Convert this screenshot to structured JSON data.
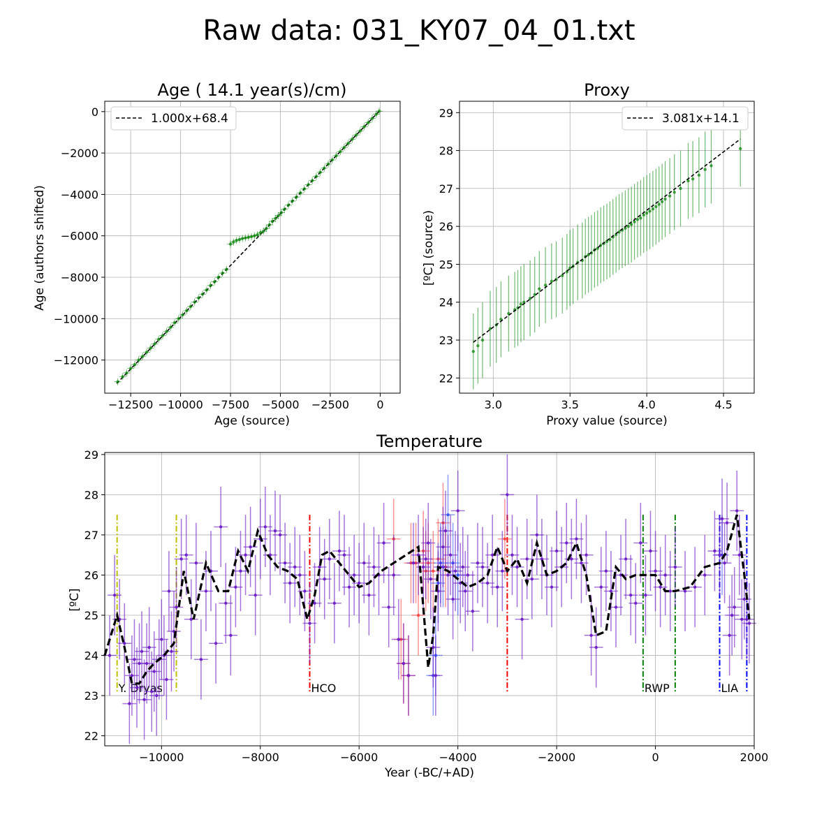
{
  "figure": {
    "title": "Raw data: 031_KY07_04_01.txt"
  },
  "chart_data": [
    {
      "id": "age",
      "type": "scatter",
      "title": "Age ( 14.1 year(s)/cm)",
      "xlabel": "Age (source)",
      "ylabel": "Age (authors shifted)",
      "xlim": [
        -13800,
        1000
      ],
      "ylim": [
        -13600,
        500
      ],
      "xticks": [
        -12500,
        -10000,
        -7500,
        -5000,
        -2500,
        0
      ],
      "xtick_labels": [
        "−12500",
        "−10000",
        "−7500",
        "−5000",
        "−2500",
        "0"
      ],
      "yticks": [
        -12000,
        -10000,
        -8000,
        -6000,
        -4000,
        -2000,
        0
      ],
      "ytick_labels": [
        "−12000",
        "−10000",
        "−8000",
        "−6000",
        "−4000",
        "−2000",
        "0"
      ],
      "grid": true,
      "legend": {
        "position": "upper-left",
        "entries": [
          "1.000x+68.4"
        ]
      },
      "fit": {
        "slope": 1.0,
        "intercept": 68.4,
        "x_range": [
          -13200,
          0
        ]
      },
      "colors": {
        "points": "#008000",
        "fit": "#000000"
      },
      "x": [
        -13150,
        -12900,
        -12700,
        -12500,
        -12300,
        -12100,
        -11900,
        -11700,
        -11500,
        -11300,
        -11100,
        -10900,
        -10700,
        -10500,
        -10300,
        -10100,
        -9900,
        -9700,
        -9500,
        -9300,
        -9100,
        -8900,
        -8700,
        -8500,
        -8300,
        -8100,
        -7900,
        -7700,
        -7500,
        -7350,
        -7200,
        -7050,
        -6900,
        -6750,
        -6600,
        -6450,
        -6300,
        -6150,
        -6000,
        -5850,
        -5700,
        -5550,
        -5400,
        -5250,
        -5100,
        -4950,
        -4800,
        -4600,
        -4400,
        -4200,
        -4000,
        -3800,
        -3600,
        -3400,
        -3200,
        -3000,
        -2800,
        -2600,
        -2400,
        -2200,
        -2000,
        -1800,
        -1600,
        -1400,
        -1200,
        -1000,
        -800,
        -600,
        -400,
        -200,
        -50
      ],
      "y": [
        -13050,
        -12800,
        -12620,
        -12400,
        -12220,
        -12000,
        -11820,
        -11620,
        -11420,
        -11220,
        -11000,
        -10820,
        -10620,
        -10420,
        -10200,
        -10000,
        -9820,
        -9620,
        -9420,
        -9200,
        -9000,
        -8820,
        -8620,
        -8400,
        -8220,
        -8000,
        -7800,
        -7620,
        -6400,
        -6300,
        -6220,
        -6180,
        -6130,
        -6100,
        -6070,
        -6040,
        -6000,
        -5950,
        -5850,
        -5780,
        -5640,
        -5470,
        -5300,
        -5160,
        -5020,
        -4880,
        -4720,
        -4520,
        -4320,
        -4130,
        -3930,
        -3730,
        -3530,
        -3330,
        -3130,
        -2930,
        -2730,
        -2530,
        -2330,
        -2130,
        -1930,
        -1730,
        -1530,
        -1330,
        -1130,
        -930,
        -730,
        -530,
        -330,
        -130,
        20
      ]
    },
    {
      "id": "proxy",
      "type": "scatter",
      "title": "Proxy",
      "xlabel": "Proxy value (source)",
      "ylabel": "[ºC] (source)",
      "xlim": [
        2.78,
        4.7
      ],
      "ylim": [
        21.6,
        29.3
      ],
      "xticks": [
        3.0,
        3.5,
        4.0,
        4.5
      ],
      "xtick_labels": [
        "3.0",
        "3.5",
        "4.0",
        "4.5"
      ],
      "yticks": [
        22,
        23,
        24,
        25,
        26,
        27,
        28,
        29
      ],
      "ytick_labels": [
        "22",
        "23",
        "24",
        "25",
        "26",
        "27",
        "28",
        "29"
      ],
      "grid": true,
      "legend": {
        "position": "upper-right",
        "entries": [
          "3.081x+14.1"
        ]
      },
      "fit": {
        "slope": 3.081,
        "intercept": 14.1,
        "x_range": [
          2.87,
          4.61
        ]
      },
      "error": 1.0,
      "colors": {
        "points": "#008000",
        "fit": "#000000"
      },
      "x": [
        2.87,
        2.9,
        2.93,
        2.98,
        3.02,
        3.05,
        3.1,
        3.14,
        3.16,
        3.18,
        3.2,
        3.24,
        3.27,
        3.3,
        3.34,
        3.38,
        3.41,
        3.45,
        3.48,
        3.5,
        3.52,
        3.55,
        3.58,
        3.6,
        3.62,
        3.64,
        3.66,
        3.68,
        3.7,
        3.72,
        3.74,
        3.76,
        3.78,
        3.8,
        3.82,
        3.84,
        3.86,
        3.88,
        3.9,
        3.92,
        3.94,
        3.96,
        3.98,
        4.0,
        4.02,
        4.04,
        4.06,
        4.08,
        4.1,
        4.12,
        4.15,
        4.18,
        4.22,
        4.27,
        4.3,
        4.34,
        4.38,
        4.42,
        4.61
      ],
      "y": [
        22.7,
        22.85,
        23.0,
        23.3,
        23.4,
        23.55,
        23.7,
        23.8,
        23.85,
        23.95,
        24.0,
        24.1,
        24.2,
        24.35,
        24.45,
        24.55,
        24.6,
        24.7,
        24.8,
        24.9,
        24.95,
        25.05,
        25.1,
        25.2,
        25.25,
        25.3,
        25.38,
        25.42,
        25.5,
        25.55,
        25.6,
        25.65,
        25.72,
        25.78,
        25.85,
        25.9,
        25.95,
        26.0,
        26.05,
        26.12,
        26.18,
        26.22,
        26.3,
        26.35,
        26.4,
        26.46,
        26.52,
        26.58,
        26.65,
        26.72,
        26.8,
        26.9,
        27.0,
        27.2,
        27.25,
        27.35,
        27.5,
        27.6,
        28.05
      ]
    },
    {
      "id": "temperature",
      "type": "line",
      "title": "Temperature",
      "xlabel": "Year (-BC/+AD)",
      "ylabel": "[ºC]",
      "xlim": [
        -11150,
        2000
      ],
      "ylim": [
        21.75,
        29.05
      ],
      "xticks": [
        -10000,
        -8000,
        -6000,
        -4000,
        -2000,
        0,
        2000
      ],
      "xtick_labels": [
        "−10000",
        "−8000",
        "−6000",
        "−4000",
        "−2000",
        "0",
        "2000"
      ],
      "yticks": [
        22,
        23,
        24,
        25,
        26,
        27,
        28,
        29
      ],
      "ytick_labels": [
        "22",
        "23",
        "24",
        "25",
        "26",
        "27",
        "28",
        "29"
      ],
      "grid": true,
      "colors": {
        "points": "#6a1bc4",
        "red": "#ff4040",
        "blue": "#3050ff",
        "smooth": "#000000"
      },
      "periods": [
        {
          "label": "Y. Dryas",
          "x0": -10900,
          "x1": -9700,
          "color": "#bfbf00"
        },
        {
          "label": "HCO",
          "x0": -7000,
          "x1": -3000,
          "color": "#ff0000"
        },
        {
          "label": "RWP",
          "x0": -250,
          "x1": 400,
          "color": "#008000"
        },
        {
          "label": "LIA",
          "x0": 1300,
          "x1": 1850,
          "color": "#0000ff"
        }
      ],
      "smooth": {
        "x": [
          -11150,
          -10900,
          -10750,
          -10600,
          -10450,
          -10300,
          -10150,
          -9950,
          -9750,
          -9550,
          -9350,
          -9100,
          -8850,
          -8650,
          -8450,
          -8250,
          -8050,
          -7850,
          -7650,
          -7450,
          -7250,
          -7050,
          -6900,
          -6750,
          -6600,
          -6400,
          -6200,
          -6000,
          -5800,
          -5550,
          -5300,
          -5050,
          -4800,
          -4600,
          -4500,
          -4400,
          -4200,
          -4000,
          -3800,
          -3600,
          -3400,
          -3200,
          -3000,
          -2800,
          -2600,
          -2400,
          -2200,
          -2000,
          -1800,
          -1600,
          -1400,
          -1200,
          -1000,
          -800,
          -600,
          -400,
          -200,
          0,
          200,
          400,
          700,
          1000,
          1300,
          1450,
          1650,
          1800,
          1900
        ],
        "y": [
          24.0,
          25.0,
          24.2,
          23.3,
          23.3,
          23.6,
          23.8,
          24.0,
          24.3,
          26.1,
          24.9,
          26.3,
          25.6,
          25.6,
          26.6,
          26.1,
          27.1,
          26.5,
          26.2,
          26.1,
          25.9,
          24.9,
          25.5,
          26.5,
          26.6,
          26.3,
          26.0,
          25.7,
          25.8,
          26.1,
          26.3,
          26.5,
          26.7,
          23.7,
          24.5,
          26.2,
          26.1,
          25.9,
          25.7,
          25.8,
          26.0,
          26.7,
          26.1,
          26.4,
          25.8,
          26.8,
          26.0,
          26.1,
          26.3,
          26.8,
          26.0,
          24.5,
          24.6,
          26.2,
          25.9,
          26.0,
          26.0,
          26.0,
          25.6,
          25.6,
          25.7,
          26.2,
          26.3,
          26.6,
          27.5,
          26.0,
          24.9
        ]
      },
      "points": {
        "x": [
          -11050,
          -10950,
          -10850,
          -10750,
          -10650,
          -10600,
          -10550,
          -10500,
          -10450,
          -10400,
          -10350,
          -10300,
          -10250,
          -10200,
          -10150,
          -10100,
          -10050,
          -10000,
          -9950,
          -9900,
          -9850,
          -9800,
          -9750,
          -9700,
          -9600,
          -9500,
          -9400,
          -9300,
          -9200,
          -9100,
          -9000,
          -8900,
          -8800,
          -8700,
          -8600,
          -8500,
          -8400,
          -8300,
          -8200,
          -8100,
          -8000,
          -7900,
          -7800,
          -7700,
          -7600,
          -7500,
          -7400,
          -7300,
          -7200,
          -7100,
          -7000,
          -6900,
          -6800,
          -6700,
          -6600,
          -6500,
          -6400,
          -6300,
          -6200,
          -6100,
          -6000,
          -5900,
          -5800,
          -5700,
          -5600,
          -5500,
          -5400,
          -5300,
          -5200,
          -5100,
          -5000,
          -4900,
          -4800,
          -4700,
          -4650,
          -4600,
          -4550,
          -4500,
          -4450,
          -4400,
          -4350,
          -4300,
          -4250,
          -4200,
          -4150,
          -4100,
          -4050,
          -4000,
          -3950,
          -3900,
          -3850,
          -3800,
          -3700,
          -3600,
          -3500,
          -3400,
          -3300,
          -3200,
          -3100,
          -3000,
          -2900,
          -2800,
          -2700,
          -2600,
          -2500,
          -2400,
          -2300,
          -2200,
          -2100,
          -2000,
          -1900,
          -1800,
          -1700,
          -1600,
          -1500,
          -1400,
          -1300,
          -1200,
          -1100,
          -1000,
          -900,
          -800,
          -700,
          -600,
          -500,
          -400,
          -300,
          -200,
          -100,
          0,
          100,
          200,
          300,
          400,
          600,
          800,
          1000,
          1200,
          1300,
          1350,
          1400,
          1450,
          1500,
          1550,
          1600,
          1650,
          1700,
          1750,
          1800,
          1850,
          1900
        ],
        "y": [
          24.0,
          25.5,
          24.9,
          24.3,
          22.8,
          23.5,
          23.9,
          23.2,
          23.8,
          24.1,
          22.9,
          23.8,
          24.2,
          23.1,
          23.6,
          23.0,
          23.9,
          24.4,
          24.0,
          23.4,
          25.6,
          24.1,
          24.6,
          25.2,
          26.4,
          26.5,
          24.9,
          26.3,
          23.9,
          25.6,
          26.1,
          24.3,
          27.2,
          25.3,
          24.5,
          25.7,
          26.1,
          26.5,
          26.7,
          25.5,
          26.9,
          27.2,
          26.5,
          27.1,
          27.0,
          26.3,
          25.8,
          26.2,
          26.0,
          25.6,
          24.8,
          25.3,
          26.2,
          25.9,
          26.4,
          25.3,
          26.6,
          26.5,
          25.7,
          26.0,
          25.8,
          26.3,
          25.5,
          26.2,
          26.0,
          26.8,
          25.2,
          26.0,
          24.4,
          23.8,
          23.5,
          26.3,
          26.5,
          26.2,
          26.4,
          26.8,
          25.9,
          24.2,
          23.5,
          25.6,
          26.2,
          26.7,
          27.1,
          26.0,
          26.5,
          25.4,
          26.1,
          27.6,
          25.8,
          26.2,
          25.6,
          26.0,
          25.1,
          26.3,
          26.2,
          25.8,
          26.5,
          25.7,
          26.1,
          28.0,
          26.5,
          26.2,
          24.9,
          26.4,
          25.9,
          27.0,
          26.4,
          26.0,
          25.7,
          26.6,
          26.2,
          26.8,
          26.4,
          26.9,
          26.3,
          26.5,
          24.5,
          24.2,
          25.7,
          26.1,
          25.6,
          25.2,
          26.0,
          26.4,
          25.5,
          25.3,
          26.8,
          25.5,
          26.6,
          26.1,
          25.7,
          26.0,
          25.6,
          26.2,
          25.6,
          25.7,
          26.0,
          26.6,
          26.5,
          27.4,
          26.3,
          27.3,
          24.5,
          25.0,
          25.2,
          27.6,
          26.5,
          24.9,
          25.4,
          24.9,
          24.8
        ],
        "red_x": [
          -5300,
          -5150,
          -5100,
          -5000,
          -4950,
          -4850,
          -4800,
          -4700,
          -4650,
          -4600,
          -4500,
          -4400,
          -4300,
          -4250,
          -3050
        ],
        "red_y": [
          26.9,
          24.4,
          23.8,
          23.5,
          26.3,
          26.3,
          25.0,
          26.6,
          26.1,
          26.3,
          26.1,
          26.4,
          27.3,
          26.2,
          26.9
        ],
        "blue_x": [
          -4500,
          -4450,
          -4400,
          -4350,
          -4300,
          -4200,
          -4100,
          -4000,
          1350
        ],
        "blue_y": [
          23.5,
          24.0,
          25.8,
          26.3,
          26.2,
          27.5,
          26.3,
          26.0,
          26.5
        ]
      }
    }
  ]
}
